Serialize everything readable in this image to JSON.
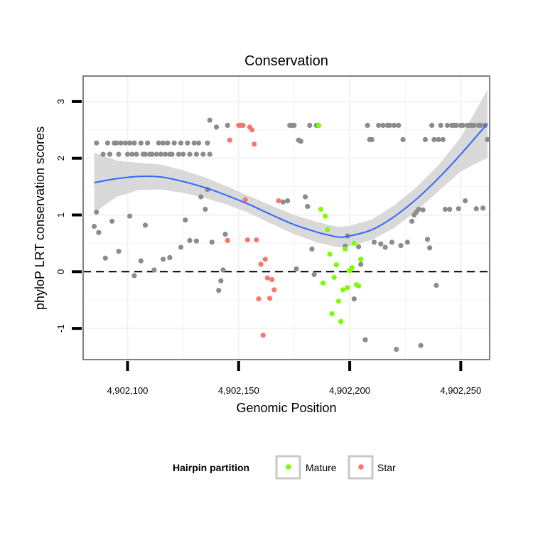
{
  "chart_data": {
    "type": "scatter",
    "title": "Conservation",
    "xlabel": "Genomic Position",
    "ylabel": "phyloP LRT conservation scores",
    "xlim": [
      4902080,
      4902263
    ],
    "ylim": [
      -1.55,
      3.45
    ],
    "x_ticks": [
      4902100,
      4902150,
      4902200,
      4902250
    ],
    "x_tick_labels": [
      "4,902,100",
      "4,902,150",
      "4,902,200",
      "4,902,250"
    ],
    "y_ticks": [
      -1,
      0,
      1,
      2,
      3
    ],
    "y_tick_labels": [
      "-1",
      "0",
      "1",
      "2",
      "3"
    ],
    "grid": true,
    "reference_line": {
      "y": 0,
      "style": "dashed"
    },
    "legend": {
      "title": "Hairpin partition",
      "position": "bottom",
      "entries": [
        {
          "label": "Mature",
          "color": "#7CFC00"
        },
        {
          "label": "Star",
          "color": "#F8766D"
        }
      ]
    },
    "colors": {
      "other": "#8C8C8C",
      "Mature": "#7CFC00",
      "Star": "#F8766D",
      "smooth_line": "#3366FF",
      "ribbon": "#D9D9D9",
      "grid": "#F2F2F2",
      "panel_border": "#808080"
    },
    "series": [
      {
        "group": "other",
        "points": [
          [
            4902086,
            2.27
          ],
          [
            4902089,
            2.07
          ],
          [
            4902091,
            2.27
          ],
          [
            4902092,
            2.07
          ],
          [
            4902094,
            2.27
          ],
          [
            4902095,
            2.27
          ],
          [
            4902096,
            2.07
          ],
          [
            4902097,
            2.27
          ],
          [
            4902099,
            2.27
          ],
          [
            4902100,
            2.07
          ],
          [
            4902101,
            2.27
          ],
          [
            4902102,
            2.07
          ],
          [
            4902103,
            2.27
          ],
          [
            4902104,
            2.07
          ],
          [
            4902106,
            2.27
          ],
          [
            4902107,
            2.07
          ],
          [
            4902108,
            2.07
          ],
          [
            4902109,
            2.27
          ],
          [
            4902110,
            2.07
          ],
          [
            4902111,
            2.07
          ],
          [
            4902113,
            2.07
          ],
          [
            4902114,
            2.27
          ],
          [
            4902115,
            2.07
          ],
          [
            4902116,
            2.27
          ],
          [
            4902117,
            2.07
          ],
          [
            4902118,
            2.27
          ],
          [
            4902119,
            2.07
          ],
          [
            4902120,
            2.07
          ],
          [
            4902121,
            2.27
          ],
          [
            4902123,
            2.07
          ],
          [
            4902124,
            2.27
          ],
          [
            4902125,
            2.07
          ],
          [
            4902127,
            2.27
          ],
          [
            4902128,
            2.07
          ],
          [
            4902130,
            2.27
          ],
          [
            4902131,
            2.07
          ],
          [
            4902132,
            2.27
          ],
          [
            4902134,
            2.07
          ],
          [
            4902136,
            2.27
          ],
          [
            4902137,
            2.07
          ],
          [
            4902085,
            0.8
          ],
          [
            4902086,
            1.05
          ],
          [
            4902087,
            0.69
          ],
          [
            4902090,
            0.24
          ],
          [
            4902093,
            0.89
          ],
          [
            4902096,
            0.36
          ],
          [
            4902101,
            0.98
          ],
          [
            4902103,
            -0.07
          ],
          [
            4902106,
            0.19
          ],
          [
            4902108,
            0.82
          ],
          [
            4902112,
            0.03
          ],
          [
            4902116,
            0.22
          ],
          [
            4902119,
            0.25
          ],
          [
            4902124,
            0.43
          ],
          [
            4902126,
            0.91
          ],
          [
            4902128,
            0.55
          ],
          [
            4902131,
            0.54
          ],
          [
            4902133,
            1.32
          ],
          [
            4902135,
            1.1
          ],
          [
            4902136,
            1.45
          ],
          [
            4902137,
            2.67
          ],
          [
            4902138,
            0.52
          ],
          [
            4902140,
            2.55
          ],
          [
            4902141,
            -0.33
          ],
          [
            4902142,
            -0.16
          ],
          [
            4902143,
            0.03
          ],
          [
            4902144,
            0.66
          ],
          [
            4902145,
            2.58
          ],
          [
            4902170,
            1.23
          ],
          [
            4902172,
            1.25
          ],
          [
            4902173,
            2.58
          ],
          [
            4902174,
            2.58
          ],
          [
            4902175,
            2.58
          ],
          [
            4902176,
            0.05
          ],
          [
            4902177,
            2.32
          ],
          [
            4902178,
            2.3
          ],
          [
            4902180,
            1.32
          ],
          [
            4902181,
            1.15
          ],
          [
            4902182,
            2.58
          ],
          [
            4902183,
            0.4
          ],
          [
            4902184,
            -0.05
          ],
          [
            4902185,
            2.58
          ],
          [
            4902186,
            2.58
          ],
          [
            4902198,
            0.45
          ],
          [
            4902199,
            0.63
          ],
          [
            4902202,
            -0.48
          ],
          [
            4902204,
            0.44
          ],
          [
            4902205,
            0.13
          ],
          [
            4902207,
            -1.2
          ],
          [
            4902208,
            2.58
          ],
          [
            4902209,
            2.33
          ],
          [
            4902210,
            2.33
          ],
          [
            4902211,
            0.52
          ],
          [
            4902213,
            2.58
          ],
          [
            4902214,
            0.49
          ],
          [
            4902215,
            2.58
          ],
          [
            4902216,
            0.43
          ],
          [
            4902217,
            2.58
          ],
          [
            4902218,
            2.58
          ],
          [
            4902219,
            0.52
          ],
          [
            4902220,
            2.58
          ],
          [
            4902221,
            -1.37
          ],
          [
            4902222,
            2.58
          ],
          [
            4902223,
            0.46
          ],
          [
            4902224,
            2.33
          ],
          [
            4902226,
            0.52
          ],
          [
            4902228,
            0.89
          ],
          [
            4902229,
            1.0
          ],
          [
            4902230,
            1.05
          ],
          [
            4902231,
            1.1
          ],
          [
            4902232,
            -1.3
          ],
          [
            4902233,
            1.09
          ],
          [
            4902234,
            2.33
          ],
          [
            4902235,
            0.57
          ],
          [
            4902236,
            0.42
          ],
          [
            4902237,
            2.58
          ],
          [
            4902238,
            2.33
          ],
          [
            4902239,
            -0.24
          ],
          [
            4902240,
            2.33
          ],
          [
            4902241,
            2.58
          ],
          [
            4902242,
            2.33
          ],
          [
            4902243,
            1.1
          ],
          [
            4902244,
            2.58
          ],
          [
            4902245,
            1.1
          ],
          [
            4902246,
            2.58
          ],
          [
            4902247,
            2.58
          ],
          [
            4902248,
            2.58
          ],
          [
            4902249,
            1.11
          ],
          [
            4902250,
            2.58
          ],
          [
            4902251,
            2.58
          ],
          [
            4902252,
            1.25
          ],
          [
            4902253,
            2.58
          ],
          [
            4902254,
            2.58
          ],
          [
            4902255,
            2.58
          ],
          [
            4902256,
            2.58
          ],
          [
            4902257,
            1.11
          ],
          [
            4902258,
            2.58
          ],
          [
            4902259,
            2.58
          ],
          [
            4902260,
            1.12
          ],
          [
            4902261,
            2.58
          ],
          [
            4902262,
            2.33
          ]
        ]
      },
      {
        "group": "Mature",
        "points": [
          [
            4902186,
            2.58
          ],
          [
            4902187,
            1.1
          ],
          [
            4902188,
            -0.2
          ],
          [
            4902189,
            0.98
          ],
          [
            4902190,
            0.74
          ],
          [
            4902191,
            0.31
          ],
          [
            4902192,
            -0.74
          ],
          [
            4902193,
            -0.1
          ],
          [
            4902194,
            0.12
          ],
          [
            4902195,
            -0.52
          ],
          [
            4902196,
            -0.88
          ],
          [
            4902197,
            -0.32
          ],
          [
            4902198,
            0.4
          ],
          [
            4902199,
            -0.28
          ],
          [
            4902200,
            0.02
          ],
          [
            4902201,
            0.07
          ],
          [
            4902202,
            0.5
          ],
          [
            4902203,
            -0.23
          ],
          [
            4902204,
            -0.25
          ],
          [
            4902205,
            0.22
          ]
        ]
      },
      {
        "group": "Star",
        "points": [
          [
            4902145,
            0.55
          ],
          [
            4902146,
            2.32
          ],
          [
            4902150,
            2.58
          ],
          [
            4902151,
            2.58
          ],
          [
            4902152,
            2.58
          ],
          [
            4902153,
            1.27
          ],
          [
            4902154,
            0.56
          ],
          [
            4902155,
            2.55
          ],
          [
            4902156,
            2.5
          ],
          [
            4902157,
            2.25
          ],
          [
            4902158,
            0.56
          ],
          [
            4902159,
            -0.48
          ],
          [
            4902160,
            0.13
          ],
          [
            4902161,
            -1.12
          ],
          [
            4902162,
            0.22
          ],
          [
            4902163,
            -0.11
          ],
          [
            4902164,
            -0.47
          ],
          [
            4902165,
            -0.14
          ],
          [
            4902166,
            -0.32
          ],
          [
            4902168,
            1.25
          ]
        ]
      }
    ],
    "smooth": {
      "x": [
        4902085,
        4902095,
        4902105,
        4902115,
        4902125,
        4902135,
        4902145,
        4902155,
        4902165,
        4902175,
        4902185,
        4902190,
        4902195,
        4902200,
        4902210,
        4902220,
        4902230,
        4902240,
        4902250,
        4902262
      ],
      "y": [
        1.57,
        1.64,
        1.68,
        1.67,
        1.59,
        1.48,
        1.34,
        1.18,
        1.0,
        0.83,
        0.7,
        0.65,
        0.61,
        0.63,
        0.74,
        0.97,
        1.28,
        1.65,
        2.07,
        2.61
      ],
      "se": [
        0.53,
        0.32,
        0.24,
        0.22,
        0.2,
        0.18,
        0.16,
        0.15,
        0.16,
        0.17,
        0.18,
        0.18,
        0.18,
        0.18,
        0.18,
        0.2,
        0.21,
        0.23,
        0.3,
        0.6
      ]
    }
  }
}
